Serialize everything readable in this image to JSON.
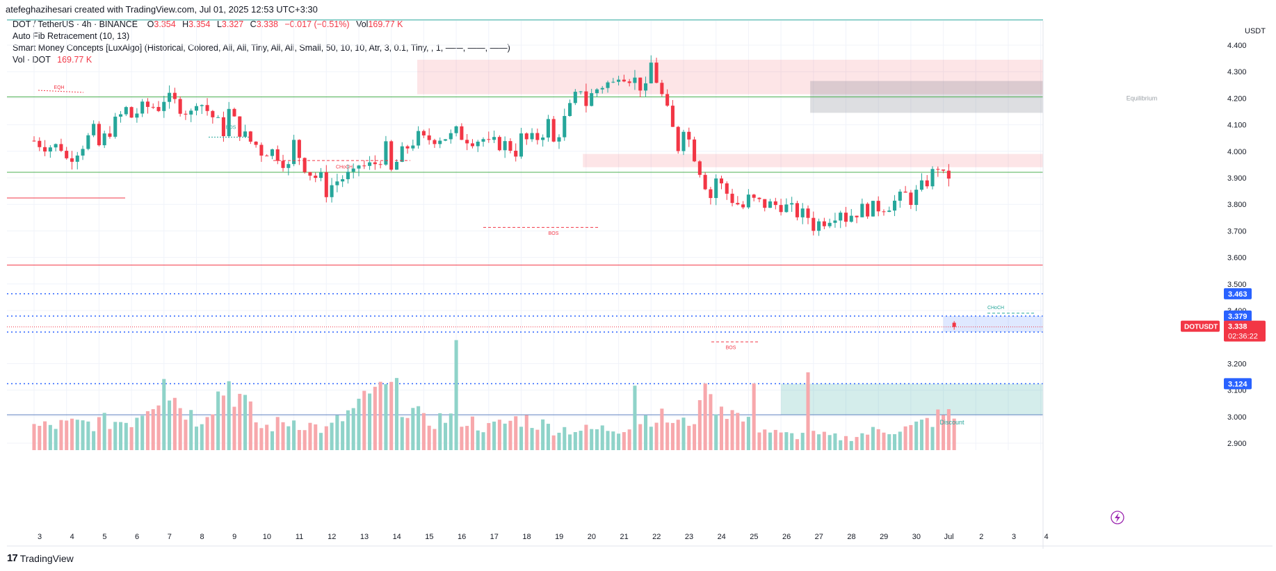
{
  "header": {
    "credit": "atefeghazihesari created with TradingView.com, Jul 01, 2025 12:53 UTC+3:30"
  },
  "legend": {
    "symbol": "DOT / TetherUS · 4h · BINANCE",
    "open_label": "O",
    "open": "3.354",
    "high_label": "H",
    "high": "3.354",
    "low_label": "L",
    "low": "3.327",
    "close_label": "C",
    "close": "3.338",
    "change": "−0.017 (−0.51%)",
    "vol_label": "Vol",
    "vol": "169.77 K",
    "indicator1": "Auto Fib Retracement (10, 13)",
    "indicator2": "Smart Money Concepts [LuxAlgo] (Historical, Colored, All, All, Tiny, All, All, Small, 50, 10, 10, Atr, 3, 0.1, Tiny, , 1, ——, ——, ——)",
    "vol_indicator_label": "Vol · DOT",
    "vol_indicator_value": "169.77 K"
  },
  "footer": {
    "logo_text": "TradingView",
    "logo_mark": "17"
  },
  "colors": {
    "up": "#26a69a",
    "down": "#f23645",
    "up_vol": "#8fd3c9",
    "down_vol": "#f7a8ac",
    "blue": "#2962ff",
    "fib_green": "#4caf50"
  },
  "chart_data": {
    "type": "candlestick",
    "currency": "USDT",
    "y_range": [
      2.86,
      4.5
    ],
    "y_ticks": [
      4.4,
      4.3,
      4.2,
      4.1,
      4.0,
      3.9,
      3.8,
      3.7,
      3.6,
      3.5,
      3.4,
      3.2,
      3.1,
      3.0,
      2.9
    ],
    "y_tick_labels": [
      "4.400",
      "4.300",
      "4.200",
      "4.100",
      "4.000",
      "3.900",
      "3.800",
      "3.700",
      "3.600",
      "3.500",
      "3.400",
      "3.200",
      "3.100",
      "3.000",
      "2.900"
    ],
    "x_tick_labels": [
      "3",
      "4",
      "5",
      "6",
      "7",
      "8",
      "9",
      "10",
      "11",
      "12",
      "13",
      "14",
      "15",
      "16",
      "17",
      "18",
      "19",
      "20",
      "21",
      "22",
      "23",
      "24",
      "25",
      "26",
      "27",
      "28",
      "29",
      "30",
      "Jul",
      "2",
      "3",
      "4"
    ],
    "first_day_label": "3",
    "ohlc_anchors": [
      [
        0,
        4.04,
        4.05
      ],
      [
        1,
        3.97,
        4.02
      ],
      [
        2,
        4.02,
        4.1
      ],
      [
        3,
        4.13,
        4.18
      ],
      [
        4,
        4.2,
        4.16
      ],
      [
        5,
        4.2,
        4.12
      ],
      [
        6,
        4.15,
        4.05
      ],
      [
        7,
        4.0,
        4.02
      ],
      [
        8,
        4.03,
        3.9
      ],
      [
        9,
        3.85,
        3.9
      ],
      [
        10,
        3.95,
        3.9
      ],
      [
        11,
        3.92,
        4.05
      ],
      [
        12,
        4.04,
        4.06
      ],
      [
        13,
        4.07,
        4.05
      ],
      [
        14,
        4.02,
        4.05
      ],
      [
        15,
        4.05,
        3.98
      ],
      [
        16,
        4.03,
        4.15
      ],
      [
        17,
        4.18,
        4.28
      ],
      [
        18,
        4.3,
        4.24
      ],
      [
        19,
        4.33,
        4.2
      ],
      [
        20,
        4.1,
        3.95
      ],
      [
        21,
        3.9,
        3.78
      ],
      [
        22,
        3.82,
        3.78
      ],
      [
        23,
        3.8,
        3.8
      ],
      [
        24,
        3.72,
        3.75
      ],
      [
        25,
        3.75,
        3.8
      ],
      [
        26,
        3.79,
        3.78
      ],
      [
        27,
        3.82,
        3.85
      ],
      [
        28,
        3.9,
        3.98
      ],
      [
        29,
        3.9,
        3.8
      ],
      [
        30,
        3.74,
        3.72
      ],
      [
        31,
        3.7,
        3.65
      ],
      [
        32,
        3.63,
        3.58
      ],
      [
        33,
        3.58,
        3.55
      ],
      [
        34,
        3.53,
        3.52
      ],
      [
        35,
        3.5,
        3.45
      ],
      [
        36,
        3.42,
        3.44
      ],
      [
        37,
        3.45,
        3.42
      ],
      [
        38,
        3.4,
        3.35
      ],
      [
        39,
        3.32,
        3.25
      ],
      [
        40,
        3.22,
        3.12
      ],
      [
        41,
        3.15,
        3.26
      ],
      [
        42,
        3.3,
        3.44
      ],
      [
        43,
        3.45,
        3.43
      ],
      [
        44,
        3.44,
        3.43
      ],
      [
        45,
        3.4,
        3.35
      ],
      [
        46,
        3.33,
        3.36
      ],
      [
        47,
        3.34,
        3.3
      ],
      [
        48,
        3.3,
        3.32
      ],
      [
        49,
        3.33,
        3.37
      ],
      [
        50,
        3.37,
        3.39
      ],
      [
        51,
        3.4,
        3.42
      ],
      [
        52,
        3.43,
        3.48
      ],
      [
        53,
        3.55,
        3.42
      ],
      [
        54,
        3.42,
        3.43
      ],
      [
        55,
        3.38,
        3.338
      ]
    ],
    "volume_anchors": [
      [
        0,
        0.23
      ],
      [
        3,
        0.3
      ],
      [
        4,
        0.64
      ],
      [
        5,
        0.3
      ],
      [
        6,
        0.68
      ],
      [
        7,
        0.22
      ],
      [
        8,
        0.3
      ],
      [
        9,
        0.2
      ],
      [
        10,
        0.44
      ],
      [
        11,
        0.6
      ],
      [
        12,
        0.28
      ],
      [
        13,
        0.34
      ],
      [
        14,
        0.22
      ],
      [
        15,
        0.32
      ],
      [
        16,
        0.22
      ],
      [
        17,
        0.2
      ],
      [
        18,
        0.22
      ],
      [
        19,
        0.35
      ],
      [
        20,
        0.26
      ],
      [
        21,
        0.5
      ],
      [
        22,
        0.26
      ],
      [
        23,
        0.15
      ],
      [
        24,
        0.15
      ],
      [
        25,
        0.12
      ],
      [
        26,
        0.2
      ],
      [
        27,
        0.22
      ],
      [
        28,
        0.35
      ],
      [
        29,
        0.3
      ],
      [
        30,
        0.35
      ],
      [
        31,
        0.4
      ],
      [
        32,
        0.3
      ],
      [
        33,
        0.4
      ],
      [
        34,
        0.3
      ],
      [
        35,
        0.4
      ],
      [
        36,
        0.42
      ],
      [
        37,
        0.25
      ],
      [
        38,
        0.45
      ],
      [
        39,
        0.65
      ],
      [
        40,
        0.75
      ],
      [
        41,
        0.5
      ],
      [
        42,
        0.32
      ],
      [
        43,
        0.26
      ],
      [
        44,
        0.32
      ],
      [
        45,
        0.28
      ],
      [
        46,
        0.22
      ],
      [
        47,
        0.22
      ],
      [
        48,
        0.18
      ],
      [
        49,
        0.22
      ],
      [
        50,
        0.2
      ],
      [
        51,
        0.2
      ],
      [
        52,
        0.2
      ],
      [
        53,
        0.24
      ],
      [
        54,
        0.22
      ],
      [
        55,
        0.16
      ]
    ],
    "volume_spikes": [
      {
        "day": 13,
        "value": 0.99
      },
      {
        "day": 6,
        "value": 0.62
      },
      {
        "day": 4,
        "value": 0.64
      },
      {
        "day": 23.8,
        "value": 0.7
      },
      {
        "day": 20.7,
        "value": 0.6
      },
      {
        "day": 22.1,
        "value": 0.6
      },
      {
        "day": 10.5,
        "value": 0.57
      },
      {
        "day": 18.5,
        "value": 0.58
      },
      {
        "day": 29.8,
        "value": 0.37
      }
    ],
    "levels": [
      {
        "name": "fib-top",
        "price": 4.495,
        "color": "#26a69a"
      },
      {
        "name": "fib-4200",
        "price": 4.205,
        "color": "#4caf50"
      },
      {
        "name": "fib-3920",
        "price": 3.921,
        "color": "#4caf50"
      },
      {
        "name": "red-3570",
        "price": 3.571,
        "color": "#f23645"
      },
      {
        "name": "bottom-line",
        "price": 3.007,
        "color": "#5b7fbf"
      }
    ],
    "dotted_levels": [
      {
        "price": 3.463,
        "label": "3.463"
      },
      {
        "price": 3.379,
        "label": "3.379"
      },
      {
        "price": 3.319,
        "label": "3.319"
      },
      {
        "price": 3.124,
        "label": "3.124"
      }
    ],
    "last_price": {
      "symbol": "DOTUSDT",
      "price": 3.338,
      "price_label": "3.338",
      "countdown": "02:36:22"
    },
    "zones": [
      {
        "name": "premium-zone",
        "x_from": 11.8,
        "x_to": 32.7,
        "price_top": 4.345,
        "price_bottom": 4.215,
        "color": "rgba(242,54,69,0.13)"
      },
      {
        "name": "equilibrium-zone",
        "x_from": 23.9,
        "x_to": 31.9,
        "price_top": 4.265,
        "price_bottom": 4.145,
        "color": "rgba(120,123,134,0.25)"
      },
      {
        "name": "supply-zone",
        "x_from": 16.9,
        "x_to": 32.7,
        "price_top": 3.99,
        "price_bottom": 3.94,
        "color": "rgba(242,54,69,0.13)"
      },
      {
        "name": "discount-zone",
        "x_from": 23.0,
        "x_to": 31.9,
        "price_top": 3.124,
        "price_bottom": 3.007,
        "color": "rgba(38,166,154,0.2)"
      },
      {
        "name": "blue-zone",
        "x_from": 28.0,
        "x_to": 32.7,
        "price_top": 3.379,
        "price_bottom": 3.319,
        "color": "rgba(41,98,255,0.15)"
      }
    ],
    "labels": {
      "eqh": "EQH",
      "bos1": "BOS",
      "choch1": "CHoCH",
      "bos2": "BOS",
      "bos3": "BOS",
      "choch2": "CHoCH",
      "equilibrium": "Equilibrium",
      "discount": "Discount"
    },
    "label_prices": {
      "eqh": 4.235,
      "bos1": 4.085,
      "choch1": 3.935,
      "bos2": 3.685,
      "bos3": 3.255,
      "choch2": 3.405
    }
  }
}
